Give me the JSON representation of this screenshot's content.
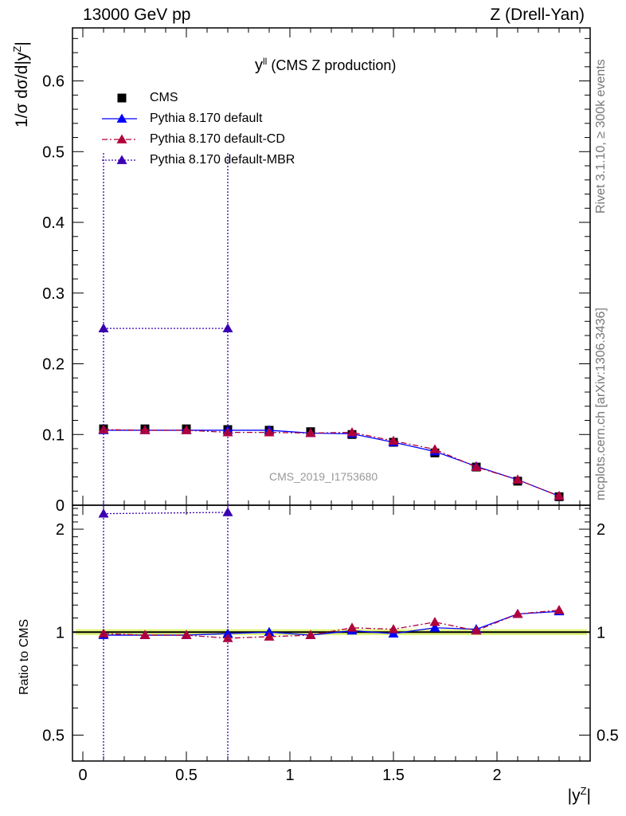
{
  "header": {
    "left": "13000 GeV pp",
    "right": "Z (Drell-Yan)"
  },
  "side_labels": {
    "rivet": "Rivet 3.1.10, ≥ 300k events",
    "mcplots": "mcplots.cern.ch [arXiv:1306.3436]"
  },
  "watermark": "CMS_2019_I1753680",
  "colors": {
    "cms": "#000000",
    "default": "#0000ff",
    "cd": "#b0003a",
    "mbr": "#3b00b0",
    "band": "#d6f05a"
  },
  "chart_data": [
    {
      "type": "line",
      "panel": "main",
      "title": "y^{ll} (CMS Z production)",
      "title_main": "y",
      "title_sup": "ll",
      "title_rest": " (CMS Z production)",
      "ylabel": "1/σ dσ/d|y^Z|",
      "ylabel_main": "1/σ dσ/d|y",
      "ylabel_sup": "Z",
      "ylabel_end": "|",
      "xlim": [
        -0.05,
        2.45
      ],
      "ylim": [
        0,
        0.675
      ],
      "yticks": [
        0,
        0.1,
        0.2,
        0.3,
        0.4,
        0.5,
        0.6
      ],
      "ytick_labels": [
        "0",
        "0.1",
        "0.2",
        "0.3",
        "0.4",
        "0.5",
        "0.6"
      ],
      "legend_position": "top-left",
      "x": [
        0.1,
        0.3,
        0.5,
        0.7,
        0.9,
        1.1,
        1.3,
        1.5,
        1.7,
        1.9,
        2.1,
        2.3
      ],
      "series": [
        {
          "name": "CMS",
          "key": "cms",
          "marker": "square",
          "line": "none",
          "values": [
            0.108,
            0.108,
            0.108,
            0.107,
            0.106,
            0.104,
            0.1,
            0.089,
            0.074,
            0.054,
            0.034,
            0.012
          ]
        },
        {
          "name": "Pythia 8.170 default",
          "key": "default",
          "marker": "triangle",
          "line": "solid",
          "values": [
            0.106,
            0.106,
            0.106,
            0.106,
            0.106,
            0.102,
            0.101,
            0.089,
            0.076,
            0.055,
            0.036,
            0.013
          ]
        },
        {
          "name": "Pythia 8.170 default-CD",
          "key": "cd",
          "marker": "triangle",
          "line": "dashdot",
          "values": [
            0.107,
            0.106,
            0.106,
            0.103,
            0.103,
            0.102,
            0.103,
            0.091,
            0.079,
            0.054,
            0.036,
            0.013
          ]
        },
        {
          "name": "Pythia 8.170 default-MBR",
          "key": "mbr",
          "marker": "triangle",
          "line": "dotted",
          "x": [
            0.1,
            0.7
          ],
          "values": [
            0.25,
            0.25
          ],
          "yerr": [
            0.25,
            0.25
          ]
        }
      ]
    },
    {
      "type": "line",
      "panel": "ratio",
      "ylabel": "Ratio to CMS",
      "xlabel": "|y^Z|",
      "xlabel_main": "|y",
      "xlabel_sup": "Z",
      "xlabel_end": "|",
      "xlim": [
        -0.05,
        2.45
      ],
      "ylim": [
        0.42,
        2.35
      ],
      "log_y": true,
      "yticks": [
        0.5,
        1,
        2
      ],
      "ytick_labels": [
        "0.5",
        "1",
        "2"
      ],
      "xticks": [
        0,
        0.5,
        1,
        1.5,
        2
      ],
      "xtick_labels": [
        "0",
        "0.5",
        "1",
        "1.5",
        "2"
      ],
      "x": [
        0.1,
        0.3,
        0.5,
        0.7,
        0.9,
        1.1,
        1.3,
        1.5,
        1.7,
        1.9,
        2.1,
        2.3
      ],
      "band": [
        0.98,
        1.02
      ],
      "series": [
        {
          "name": "Pythia 8.170 default",
          "key": "default",
          "values": [
            0.98,
            0.98,
            0.98,
            0.99,
            1.0,
            0.98,
            1.01,
            0.99,
            1.03,
            1.02,
            1.13,
            1.15
          ]
        },
        {
          "name": "Pythia 8.170 default-CD",
          "key": "cd",
          "values": [
            0.99,
            0.98,
            0.98,
            0.96,
            0.97,
            0.98,
            1.03,
            1.02,
            1.07,
            1.01,
            1.13,
            1.16
          ]
        },
        {
          "name": "Pythia 8.170 default-MBR",
          "key": "mbr",
          "x": [
            0.1,
            0.7
          ],
          "values": [
            2.22,
            2.24
          ]
        }
      ]
    }
  ]
}
